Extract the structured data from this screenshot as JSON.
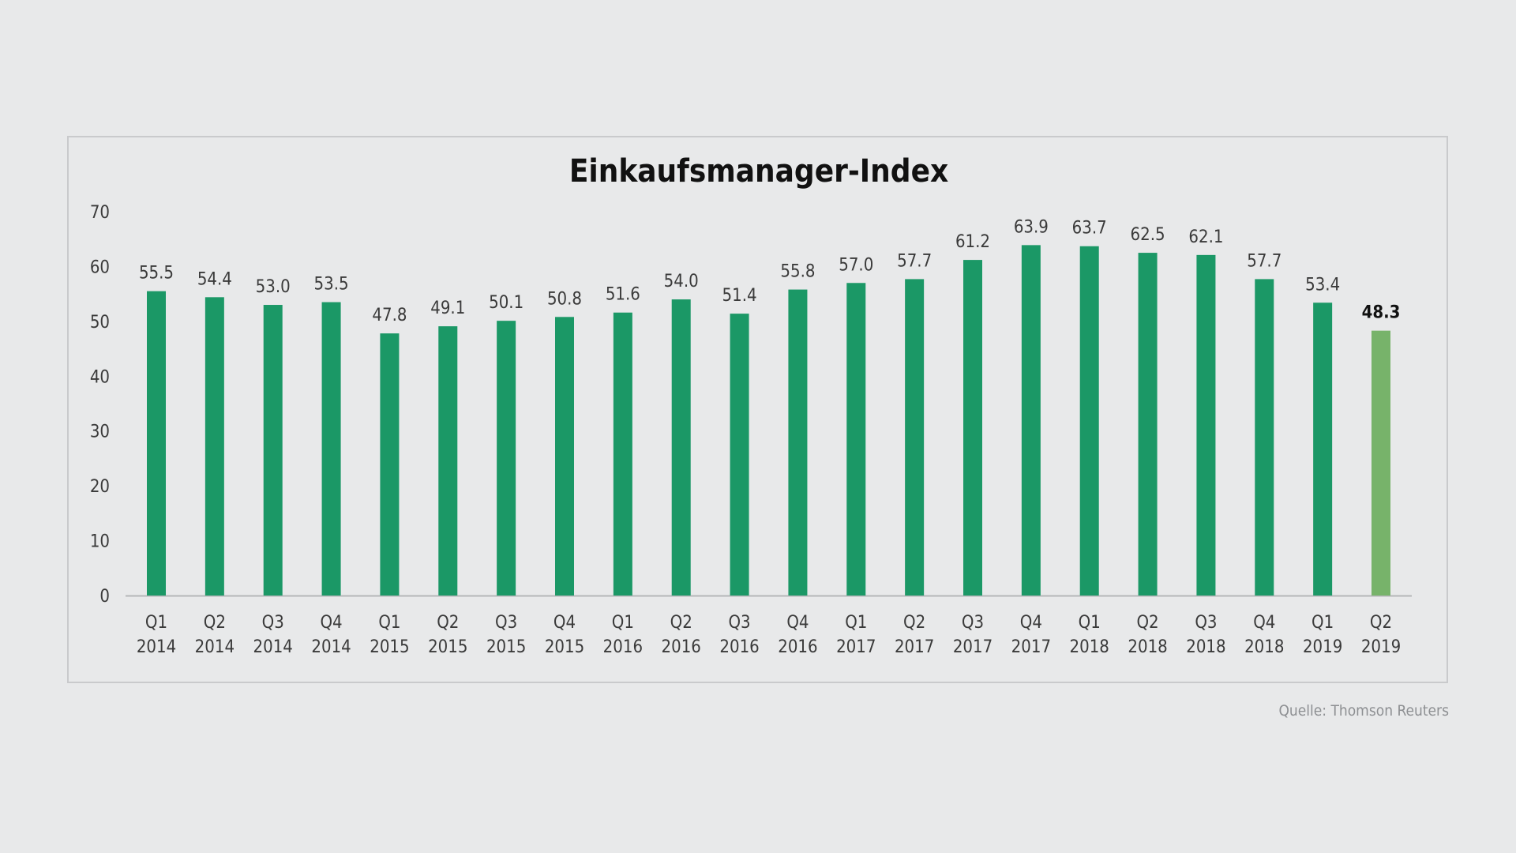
{
  "chart_data": {
    "type": "bar",
    "title": "Einkaufsmanager-Index",
    "xlabel": "",
    "ylabel": "",
    "ylim": [
      0,
      70
    ],
    "yticks": [
      0,
      10,
      20,
      30,
      40,
      50,
      60,
      70
    ],
    "grid": false,
    "categories": [
      [
        "Q1",
        "2014"
      ],
      [
        "Q2",
        "2014"
      ],
      [
        "Q3",
        "2014"
      ],
      [
        "Q4",
        "2014"
      ],
      [
        "Q1",
        "2015"
      ],
      [
        "Q2",
        "2015"
      ],
      [
        "Q3",
        "2015"
      ],
      [
        "Q4",
        "2015"
      ],
      [
        "Q1",
        "2016"
      ],
      [
        "Q2",
        "2016"
      ],
      [
        "Q3",
        "2016"
      ],
      [
        "Q4",
        "2016"
      ],
      [
        "Q1",
        "2017"
      ],
      [
        "Q2",
        "2017"
      ],
      [
        "Q3",
        "2017"
      ],
      [
        "Q4",
        "2017"
      ],
      [
        "Q1",
        "2018"
      ],
      [
        "Q2",
        "2018"
      ],
      [
        "Q3",
        "2018"
      ],
      [
        "Q4",
        "2018"
      ],
      [
        "Q1",
        "2019"
      ],
      [
        "Q2",
        "2019"
      ]
    ],
    "values": [
      55.5,
      54.4,
      53.0,
      53.5,
      47.8,
      49.1,
      50.1,
      50.8,
      51.6,
      54.0,
      51.4,
      55.8,
      57.0,
      57.7,
      61.2,
      63.9,
      63.7,
      62.5,
      62.1,
      57.7,
      53.4,
      48.3
    ],
    "value_labels": [
      "55.5",
      "54.4",
      "53.0",
      "53.5",
      "47.8",
      "49.1",
      "50.1",
      "50.8",
      "51.6",
      "54.0",
      "51.4",
      "55.8",
      "57.0",
      "57.7",
      "61.2",
      "63.9",
      "63.7",
      "62.5",
      "62.1",
      "57.7",
      "53.4",
      "48.3"
    ],
    "highlight_index": 21,
    "colors": {
      "bar": "#1b9866",
      "highlight": "#77b36a",
      "text": "#3a3a3a",
      "axis": "#b5b6b8"
    }
  },
  "source": "Quelle: Thomson Reuters"
}
